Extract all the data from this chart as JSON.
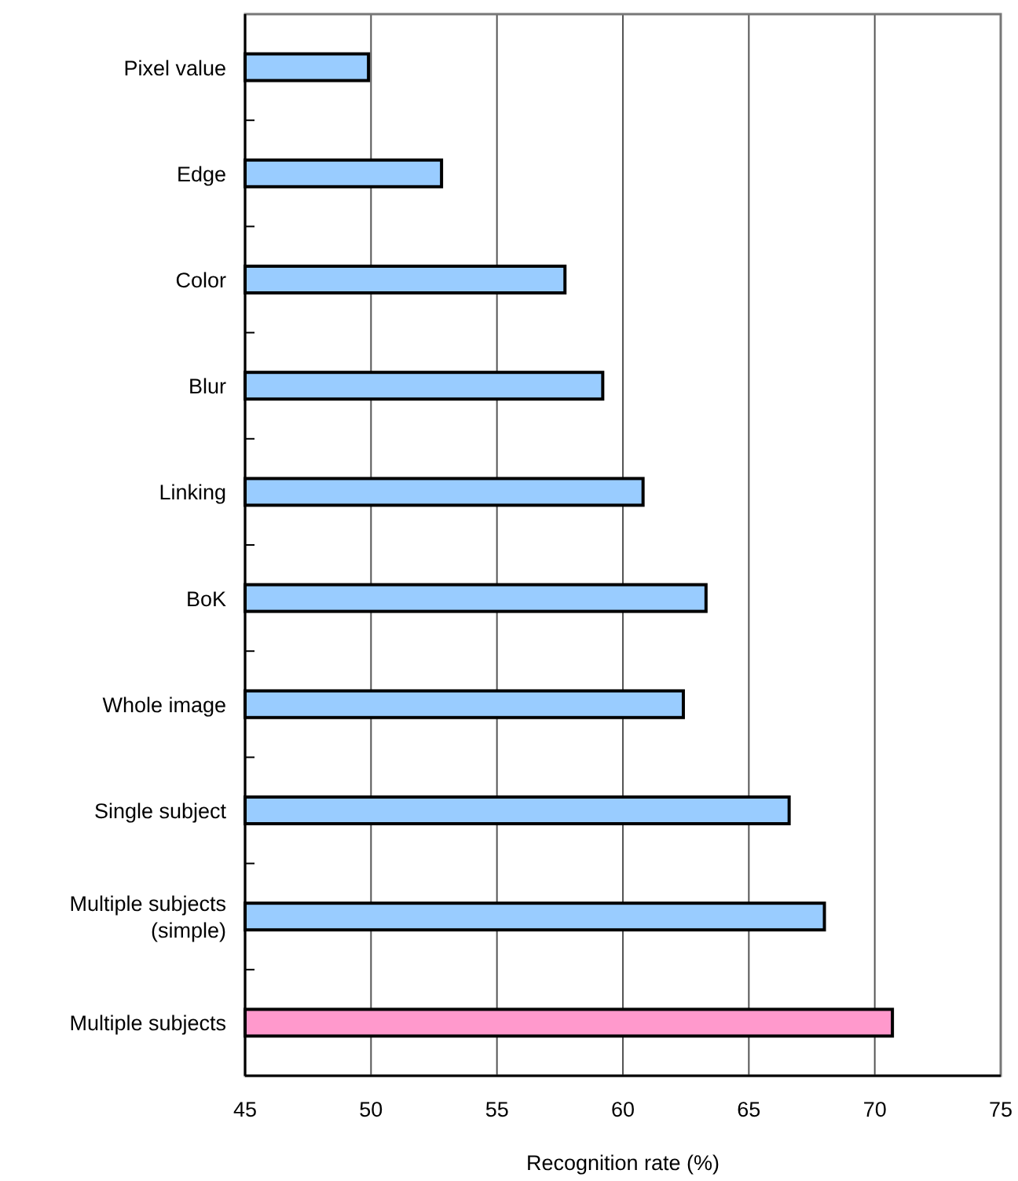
{
  "chart_data": {
    "type": "bar",
    "orientation": "horizontal",
    "xlabel": "Recognition rate (%)",
    "categories": [
      "Pixel value",
      "Edge",
      "Color",
      "Blur",
      "Linking",
      "BoK",
      "Whole image",
      "Single subject",
      "Multiple subjects\n(simple)",
      "Multiple subjects"
    ],
    "values": [
      49.9,
      52.8,
      57.7,
      59.2,
      60.8,
      63.3,
      62.4,
      66.6,
      68.0,
      70.7
    ],
    "colors": [
      "#99ccff",
      "#99ccff",
      "#99ccff",
      "#99ccff",
      "#99ccff",
      "#99ccff",
      "#99ccff",
      "#99ccff",
      "#99ccff",
      "#ff99cc"
    ],
    "xlim": [
      45,
      75
    ],
    "xticks": [
      45,
      50,
      55,
      60,
      65,
      70,
      75
    ],
    "grid": "x"
  }
}
